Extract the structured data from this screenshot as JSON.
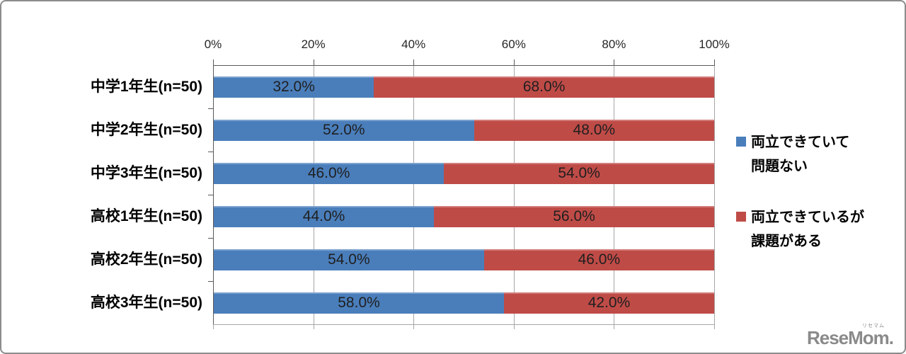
{
  "chart_data": {
    "type": "bar",
    "orientation": "horizontal",
    "stacked": true,
    "categories": [
      "中学1年生(n=50)",
      "中学2年生(n=50)",
      "中学3年生(n=50)",
      "高校1年生(n=50)",
      "高校2年生(n=50)",
      "高校3年生(n=50)"
    ],
    "series": [
      {
        "name": "両立できていて問題ない",
        "color": "#4a7ebb",
        "values": [
          32.0,
          52.0,
          46.0,
          44.0,
          54.0,
          58.0
        ]
      },
      {
        "name": "両立できているが課題がある",
        "color": "#bf4b47",
        "values": [
          68.0,
          48.0,
          54.0,
          56.0,
          46.0,
          42.0
        ]
      }
    ],
    "x_ticks": [
      "0%",
      "20%",
      "40%",
      "60%",
      "80%",
      "100%"
    ],
    "xlim": [
      0,
      100
    ],
    "data_label_suffix": "%",
    "data_label_decimals": 1,
    "grid": true,
    "legend_position": "right",
    "title": "",
    "xlabel": "",
    "ylabel": ""
  },
  "legend": {
    "items": [
      {
        "color": "#4a7ebb",
        "lines": [
          "両立できていて",
          "問題ない"
        ]
      },
      {
        "color": "#bf4b47",
        "lines": [
          "両立できているが",
          "課題がある"
        ]
      }
    ]
  },
  "watermark": {
    "text": "ReseMom.",
    "ruby": "リセマム"
  }
}
